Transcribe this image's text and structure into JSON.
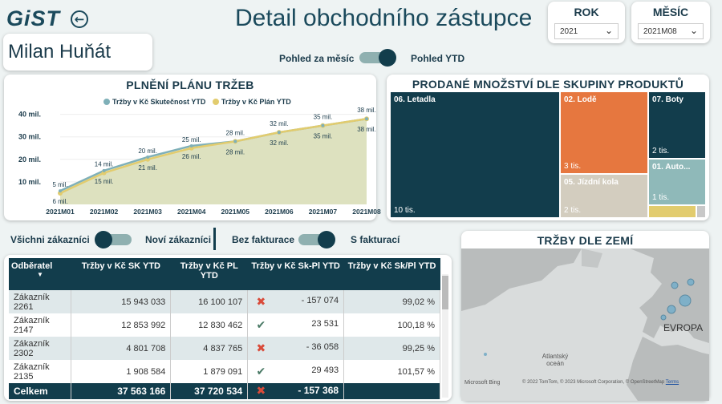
{
  "logo": "GiST",
  "page_title": "Detail obchodního zástupce",
  "rok": {
    "label": "ROK",
    "value": "2021"
  },
  "mesic": {
    "label": "MĚSÍC",
    "value": "2021M08"
  },
  "rep_name": "Milan Huňát",
  "view_toggle": {
    "left": "Pohled za měsíc",
    "right": "Pohled YTD"
  },
  "customer_toggle": {
    "left": "Všichni zákazníci",
    "right": "Noví zákazníci"
  },
  "invoice_toggle": {
    "left": "Bez fakturace",
    "right": "S fakturací"
  },
  "line_chart": {
    "title": "PLNĚNÍ PLÁNU TRŽEB",
    "legend_actual": "Tržby v Kč Skutečnost YTD",
    "legend_plan": "Tržby v Kč Plán YTD",
    "colors": {
      "actual": "#7fb0b8",
      "plan": "#e2cc6e"
    }
  },
  "chart_data": {
    "type": "line",
    "title": "PLNĚNÍ PLÁNU TRŽEB",
    "categories": [
      "2021M01",
      "2021M02",
      "2021M03",
      "2021M04",
      "2021M05",
      "2021M06",
      "2021M07",
      "2021M08"
    ],
    "yticks": [
      "10 mil.",
      "20 mil.",
      "30 mil.",
      "40 mil."
    ],
    "ylim": [
      0,
      42
    ],
    "series": [
      {
        "name": "Tržby v Kč Skutečnost YTD",
        "values": [
          6,
          15,
          21,
          26,
          28,
          32,
          35,
          38
        ],
        "labels": [
          "6 mil.",
          "15 mil.",
          "21 mil.",
          "26 mil.",
          "28 mil.",
          "32 mil.",
          "35 mil.",
          "38 mil."
        ]
      },
      {
        "name": "Tržby v Kč Plán YTD",
        "values": [
          5,
          14,
          20,
          25,
          28,
          32,
          35,
          38
        ],
        "labels": [
          "5 mil.",
          "14 mil.",
          "20 mil.",
          "25 mil.",
          "28 mil.",
          "32 mil.",
          "35 mil.",
          "38 mil."
        ]
      }
    ]
  },
  "treemap": {
    "title": "PRODANÉ MNOŽSTVÍ DLE SKUPINY PRODUKTŮ",
    "items": [
      {
        "label": "06. Letadla",
        "value": "10 tis.",
        "color": "#123d4c"
      },
      {
        "label": "02. Lodě",
        "value": "3 tis.",
        "color": "#e6773f"
      },
      {
        "label": "07. Boty",
        "value": "2 tis.",
        "color": "#123d4c"
      },
      {
        "label": "05. Jízdní kola",
        "value": "2 tis.",
        "color": "#d3cdbf"
      },
      {
        "label": "01. Auto...",
        "value": "1 tis.",
        "color": "#8fb9b9"
      }
    ],
    "small_colors": [
      "#e2cc6e",
      "#c8c8c8"
    ]
  },
  "map": {
    "title": "TRŽBY DLE ZEMÍ",
    "label_europe": "EVROPA",
    "label_ocean": "Atlantský oceán",
    "bing": "Microsoft Bing",
    "copyright": "© 2022 TomTom, © 2023 Microsoft Corporation, © OpenStreetMap",
    "terms": "Terms"
  },
  "table": {
    "headers": [
      "Odběratel",
      "Tržby v Kč SK YTD",
      "Tržby v Kč PL YTD",
      "Tržby v Kč Sk-Pl YTD",
      "Tržby v Kč Sk/Pl YTD"
    ],
    "rows": [
      {
        "c": "Zákazník 2261",
        "sk": "15 943 033",
        "pl": "16 100 107",
        "ok": false,
        "diff": "- 157 074",
        "pct": "99,02 %"
      },
      {
        "c": "Zákazník 2147",
        "sk": "12 853 992",
        "pl": "12 830 462",
        "ok": true,
        "diff": "23 531",
        "pct": "100,18 %"
      },
      {
        "c": "Zákazník 2302",
        "sk": "4 801 708",
        "pl": "4 837 765",
        "ok": false,
        "diff": "- 36 058",
        "pct": "99,25 %"
      },
      {
        "c": "Zákazník 2135",
        "sk": "1 908 584",
        "pl": "1 879 091",
        "ok": true,
        "diff": "29 493",
        "pct": "101,57 %"
      }
    ],
    "total": {
      "c": "Celkem",
      "sk": "37 563 166",
      "pl": "37 720 534",
      "ok": false,
      "diff": "- 157 368",
      "pct": ""
    },
    "icons": {
      "ok": "✔",
      "bad": "✖"
    }
  }
}
